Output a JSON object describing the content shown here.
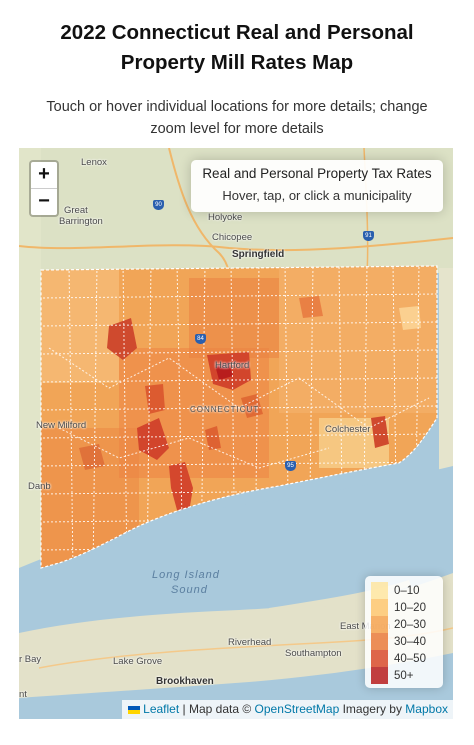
{
  "header": {
    "title_line1": "2022 Connecticut Real and Personal",
    "title_line2": "Property Mill Rates Map",
    "subtitle_line1": "Touch or hover individual locations for more details; change",
    "subtitle_line2": "zoom level for more details"
  },
  "map": {
    "zoom_in_label": "+",
    "zoom_out_label": "−",
    "info_title": "Real and Personal Property Tax Rates",
    "info_hint": "Hover, tap, or click a municipality",
    "place_labels": {
      "lenox": "Lenox",
      "great_barrington": "Great",
      "great_barrington_2": "Barrington",
      "holyoke": "Holyoke",
      "chicopee": "Chicopee",
      "springfield": "Springfield",
      "hartford": "Hartford",
      "connecticut": "CONNECTICUT",
      "new_milford": "New Milford",
      "danbury": "Danb",
      "colchester": "Colchester",
      "long_island_sound": "Long Island",
      "long_island_sound_2": "Sound",
      "east_marion": "East Marion",
      "riverhead": "Riverhead",
      "bay": "r Bay",
      "lake_grove": "Lake Grove",
      "southampton": "Southampton",
      "brookhaven": "Brookhaven",
      "nt": "nt"
    },
    "highway_shields": [
      "90",
      "91",
      "84",
      "95"
    ],
    "legend": [
      {
        "label": "0–10",
        "color": "#fee5a0"
      },
      {
        "label": "10–20",
        "color": "#fdc66e"
      },
      {
        "label": "20–30",
        "color": "#f5a24f"
      },
      {
        "label": "30–40",
        "color": "#e97a3b"
      },
      {
        "label": "40–50",
        "color": "#d84a2c"
      },
      {
        "label": "50+",
        "color": "#b81d1d"
      }
    ],
    "attribution": {
      "leaflet": "Leaflet",
      "map_data": "| Map data ©",
      "osm": "OpenStreetMap",
      "imagery": "Imagery by",
      "mapbox": "Mapbox"
    }
  }
}
